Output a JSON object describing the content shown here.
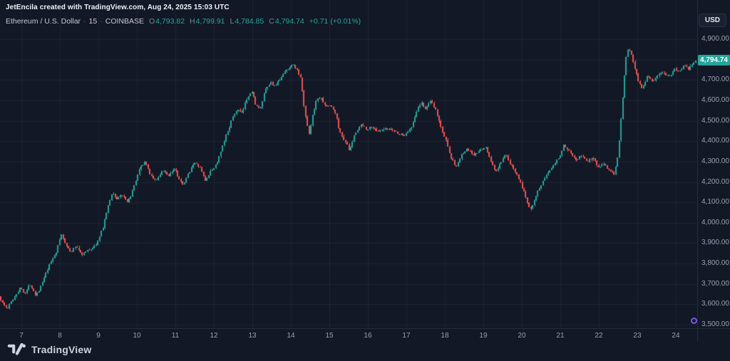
{
  "header": {
    "attribution": "JetEncila created with TradingView.com, Aug 24, 2025 15:03 UTC",
    "currency_button": "USD"
  },
  "legend": {
    "symbol": "Ethereum / U.S. Dollar",
    "separator": "·",
    "interval": "15",
    "exchange": "COINBASE",
    "ohlc": [
      {
        "label": "O",
        "value": "4,793.82"
      },
      {
        "label": "H",
        "value": "4,799.91"
      },
      {
        "label": "L",
        "value": "4,784.85"
      },
      {
        "label": "C",
        "value": "4,794.74"
      }
    ],
    "change": "+0.71 (+0.01%)"
  },
  "footer": {
    "brand": "TradingView"
  },
  "price_axis": {
    "labels": [
      "4,900.00",
      "4,800.00",
      "4,700.00",
      "4,600.00",
      "4,500.00",
      "4,400.00",
      "4,300.00",
      "4,200.00",
      "4,100.00",
      "4,000.00",
      "3,900.00",
      "3,800.00",
      "3,700.00",
      "3,600.00",
      "3,500.00"
    ],
    "values": [
      4900,
      4800,
      4700,
      4600,
      4500,
      4400,
      4300,
      4200,
      4100,
      4000,
      3900,
      3800,
      3700,
      3600,
      3500
    ],
    "last_price": "4,794.74",
    "last_price_value": 4794.74
  },
  "time_axis": {
    "labels": [
      "7",
      "8",
      "9",
      "10",
      "11",
      "12",
      "13",
      "14",
      "15",
      "16",
      "17",
      "18",
      "19",
      "20",
      "21",
      "22",
      "23",
      "24"
    ],
    "values": [
      7,
      8,
      9,
      10,
      11,
      12,
      13,
      14,
      15,
      16,
      17,
      18,
      19,
      20,
      21,
      22,
      23,
      24
    ]
  },
  "colors": {
    "background": "#121826",
    "up": "#26a69a",
    "down": "#ef5350",
    "grid": "rgba(170,180,200,0.07)",
    "axis_text": "#98a1b3",
    "badge_bg": "#26a69a"
  },
  "chart_data": {
    "type": "candlestick",
    "title": "Ethereum / U.S. Dollar",
    "interval_minutes": 15,
    "exchange": "COINBASE",
    "last_open": 4793.82,
    "last_high": 4799.91,
    "last_low": 4784.85,
    "last_close": 4794.74,
    "change_abs": 0.71,
    "change_pct": 0.01,
    "xlabel_unit": "day of August 2025",
    "visible_range": {
      "days": [
        6.444,
        24.556
      ],
      "price": [
        3482.5,
        5092.5
      ]
    },
    "grid": true,
    "price_ticks_step": 100,
    "price_path": [
      [
        6.44,
        3640
      ],
      [
        6.55,
        3600
      ],
      [
        6.65,
        3575
      ],
      [
        6.78,
        3620
      ],
      [
        6.9,
        3655
      ],
      [
        7.0,
        3680
      ],
      [
        7.12,
        3655
      ],
      [
        7.25,
        3700
      ],
      [
        7.4,
        3645
      ],
      [
        7.52,
        3685
      ],
      [
        7.65,
        3745
      ],
      [
        7.8,
        3815
      ],
      [
        7.95,
        3865
      ],
      [
        8.05,
        3945
      ],
      [
        8.18,
        3895
      ],
      [
        8.3,
        3855
      ],
      [
        8.45,
        3885
      ],
      [
        8.6,
        3845
      ],
      [
        8.75,
        3865
      ],
      [
        8.9,
        3880
      ],
      [
        9.0,
        3905
      ],
      [
        9.12,
        3965
      ],
      [
        9.25,
        4060
      ],
      [
        9.38,
        4150
      ],
      [
        9.5,
        4115
      ],
      [
        9.62,
        4140
      ],
      [
        9.78,
        4095
      ],
      [
        9.95,
        4175
      ],
      [
        10.1,
        4265
      ],
      [
        10.22,
        4300
      ],
      [
        10.38,
        4235
      ],
      [
        10.52,
        4205
      ],
      [
        10.68,
        4255
      ],
      [
        10.85,
        4235
      ],
      [
        11.0,
        4270
      ],
      [
        11.12,
        4215
      ],
      [
        11.22,
        4180
      ],
      [
        11.38,
        4250
      ],
      [
        11.5,
        4295
      ],
      [
        11.65,
        4275
      ],
      [
        11.8,
        4205
      ],
      [
        11.95,
        4255
      ],
      [
        12.1,
        4290
      ],
      [
        12.22,
        4355
      ],
      [
        12.35,
        4435
      ],
      [
        12.5,
        4510
      ],
      [
        12.62,
        4555
      ],
      [
        12.75,
        4535
      ],
      [
        12.88,
        4610
      ],
      [
        13.0,
        4650
      ],
      [
        13.1,
        4585
      ],
      [
        13.22,
        4550
      ],
      [
        13.35,
        4645
      ],
      [
        13.5,
        4690
      ],
      [
        13.62,
        4665
      ],
      [
        13.78,
        4720
      ],
      [
        13.92,
        4750
      ],
      [
        14.05,
        4775
      ],
      [
        14.15,
        4760
      ],
      [
        14.28,
        4705
      ],
      [
        14.38,
        4545
      ],
      [
        14.5,
        4440
      ],
      [
        14.62,
        4555
      ],
      [
        14.72,
        4615
      ],
      [
        14.85,
        4600
      ],
      [
        14.95,
        4565
      ],
      [
        15.05,
        4580
      ],
      [
        15.18,
        4535
      ],
      [
        15.3,
        4440
      ],
      [
        15.45,
        4395
      ],
      [
        15.55,
        4350
      ],
      [
        15.7,
        4445
      ],
      [
        15.85,
        4480
      ],
      [
        16.0,
        4460
      ],
      [
        16.15,
        4470
      ],
      [
        16.3,
        4445
      ],
      [
        16.5,
        4460
      ],
      [
        16.7,
        4450
      ],
      [
        16.85,
        4435
      ],
      [
        17.0,
        4430
      ],
      [
        17.15,
        4470
      ],
      [
        17.3,
        4555
      ],
      [
        17.42,
        4590
      ],
      [
        17.52,
        4550
      ],
      [
        17.62,
        4600
      ],
      [
        17.78,
        4555
      ],
      [
        17.95,
        4450
      ],
      [
        18.08,
        4390
      ],
      [
        18.2,
        4310
      ],
      [
        18.32,
        4275
      ],
      [
        18.48,
        4340
      ],
      [
        18.62,
        4360
      ],
      [
        18.78,
        4330
      ],
      [
        18.95,
        4355
      ],
      [
        19.08,
        4375
      ],
      [
        19.22,
        4300
      ],
      [
        19.35,
        4250
      ],
      [
        19.48,
        4295
      ],
      [
        19.6,
        4330
      ],
      [
        19.75,
        4280
      ],
      [
        19.9,
        4240
      ],
      [
        20.0,
        4190
      ],
      [
        20.15,
        4110
      ],
      [
        20.25,
        4065
      ],
      [
        20.4,
        4140
      ],
      [
        20.55,
        4190
      ],
      [
        20.7,
        4245
      ],
      [
        20.85,
        4290
      ],
      [
        21.0,
        4325
      ],
      [
        21.12,
        4380
      ],
      [
        21.28,
        4350
      ],
      [
        21.42,
        4310
      ],
      [
        21.58,
        4330
      ],
      [
        21.72,
        4300
      ],
      [
        21.88,
        4320
      ],
      [
        22.0,
        4270
      ],
      [
        22.15,
        4295
      ],
      [
        22.3,
        4255
      ],
      [
        22.42,
        4230
      ],
      [
        22.52,
        4330
      ],
      [
        22.62,
        4560
      ],
      [
        22.72,
        4800
      ],
      [
        22.8,
        4865
      ],
      [
        22.88,
        4815
      ],
      [
        22.95,
        4760
      ],
      [
        23.05,
        4700
      ],
      [
        23.15,
        4660
      ],
      [
        23.28,
        4720
      ],
      [
        23.42,
        4695
      ],
      [
        23.55,
        4720
      ],
      [
        23.7,
        4740
      ],
      [
        23.85,
        4715
      ],
      [
        23.98,
        4755
      ],
      [
        24.1,
        4738
      ],
      [
        24.22,
        4768
      ],
      [
        24.35,
        4755
      ],
      [
        24.45,
        4775
      ],
      [
        24.56,
        4795
      ]
    ]
  }
}
